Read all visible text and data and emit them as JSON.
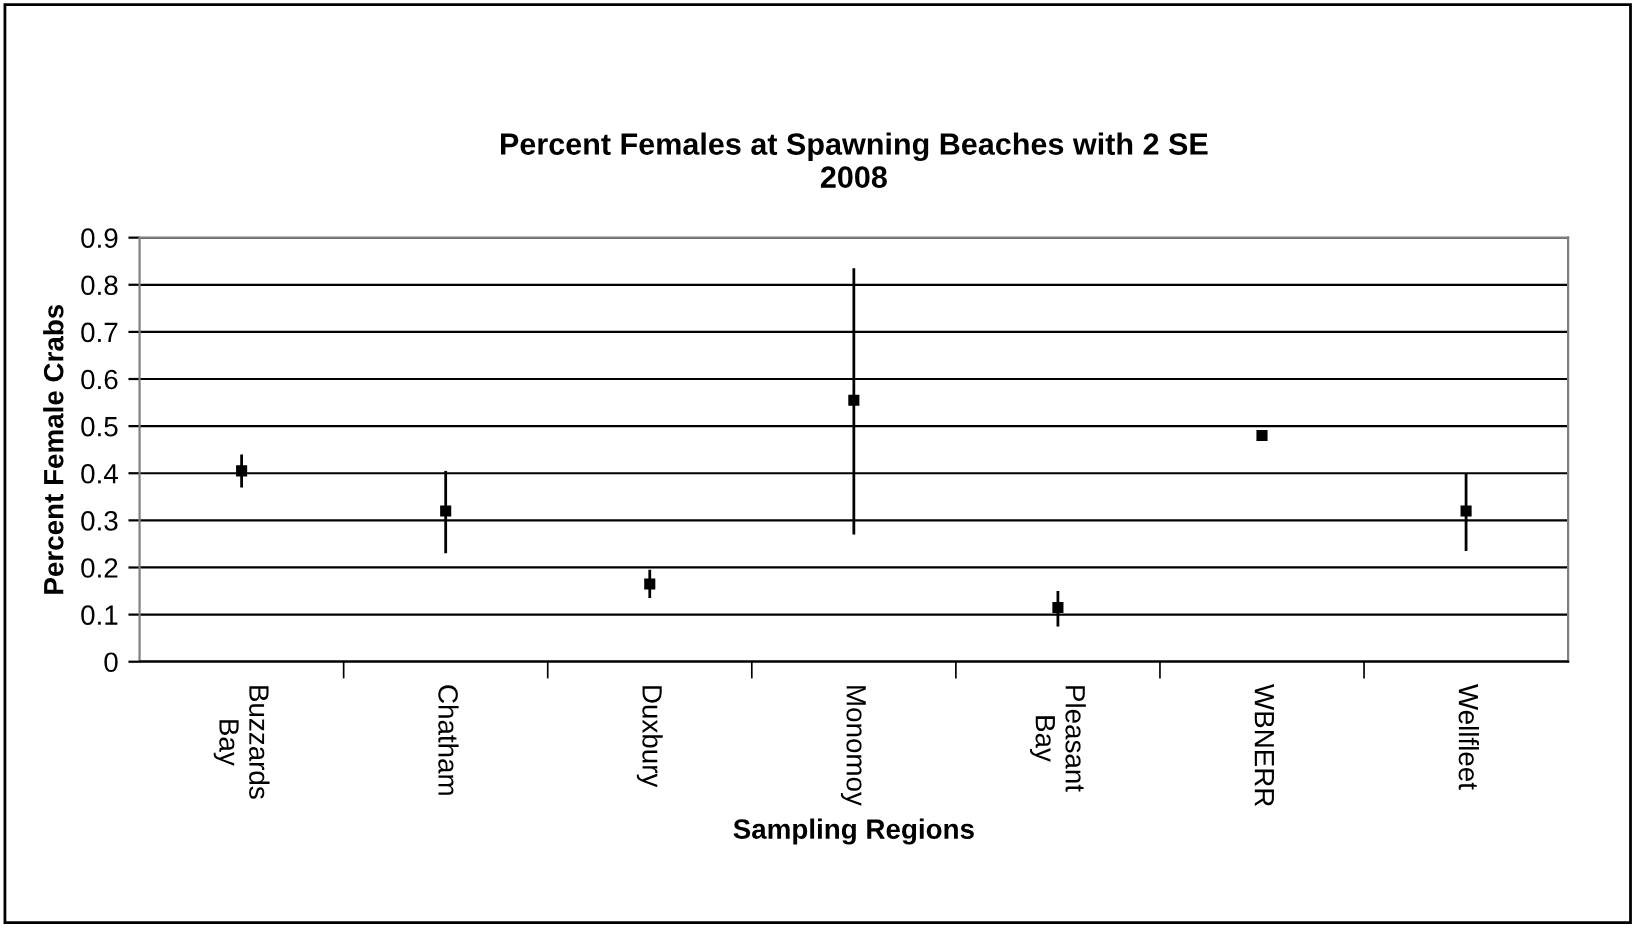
{
  "chart_data": {
    "type": "scatter",
    "title": "Percent Females at Spawning Beaches with 2 SE\n2008",
    "xlabel": "Sampling Regions",
    "ylabel": "Percent Female Crabs",
    "categories": [
      "Buzzards\nBay",
      "Chatham",
      "Duxbury",
      "Monomoy",
      "Pleasant\nBay",
      "WBNERR",
      "Wellfleet"
    ],
    "values": [
      0.405,
      0.32,
      0.165,
      0.555,
      0.115,
      0.48,
      0.32
    ],
    "errors": [
      [
        0.37,
        0.44
      ],
      [
        0.23,
        0.405
      ],
      [
        0.135,
        0.195
      ],
      [
        0.27,
        0.835
      ],
      [
        0.075,
        0.15
      ],
      null,
      [
        0.235,
        0.4
      ]
    ],
    "color": "#000000",
    "marker": "square",
    "grid": "y",
    "ylim": [
      0,
      0.9
    ],
    "yticks": [
      0,
      0.1,
      0.2,
      0.3,
      0.4,
      0.5,
      0.6,
      0.7,
      0.8,
      0.9
    ]
  }
}
